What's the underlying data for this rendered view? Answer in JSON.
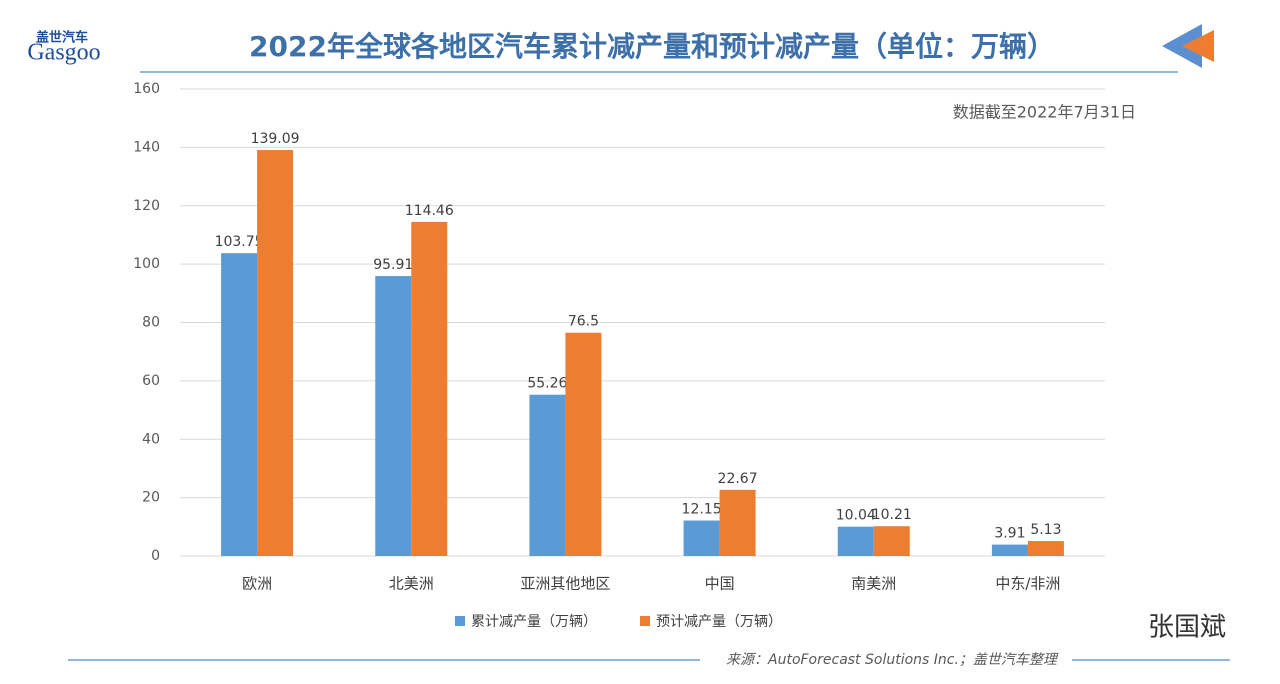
{
  "header": {
    "logo": "Gasgoo",
    "logo_cn": "盖世汽车"
  },
  "chart_data": {
    "type": "bar",
    "title": "2022年全球各地区汽车累计减产量和预计减产量（单位：万辆）",
    "note": "数据截至2022年7月31日",
    "categories": [
      "欧洲",
      "北美洲",
      "亚洲其他地区",
      "中国",
      "南美洲",
      "中东/非洲"
    ],
    "series": [
      {
        "name": "累计减产量（万辆）",
        "color": "#5b9bd5",
        "values": [
          103.75,
          95.91,
          55.26,
          12.15,
          10.04,
          3.91
        ]
      },
      {
        "name": "预计减产量（万辆）",
        "color": "#ed7d31",
        "values": [
          139.09,
          114.46,
          76.5,
          22.67,
          10.21,
          5.13
        ]
      }
    ],
    "ylim": [
      0,
      160
    ],
    "yticks": [
      0,
      20,
      40,
      60,
      80,
      100,
      120,
      140,
      160
    ],
    "grid": true,
    "legend": "bottom"
  },
  "footer": {
    "source": "来源：AutoForecast Solutions Inc.；盖世汽车整理",
    "watermark": "张国斌"
  }
}
